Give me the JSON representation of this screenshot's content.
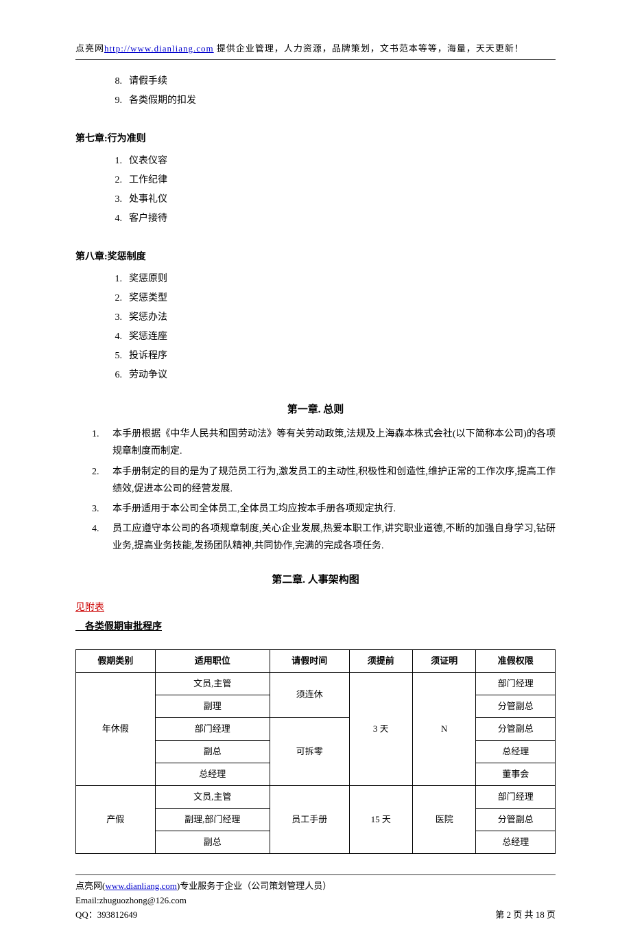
{
  "header": {
    "prefix": "点亮网",
    "url": "http://www.dianliang.com",
    "suffix": " 提供企业管理，人力资源，品牌策划，文书范本等等，海量，天天更新！"
  },
  "toc_cont": [
    {
      "n": "8.",
      "t": "请假手续"
    },
    {
      "n": "9.",
      "t": "各类假期的扣发"
    }
  ],
  "ch7": {
    "title": "第七章:行为准则",
    "items": [
      {
        "n": "1.",
        "t": "仪表仪容"
      },
      {
        "n": "2.",
        "t": "工作纪律"
      },
      {
        "n": "3.",
        "t": "处事礼仪"
      },
      {
        "n": "4.",
        "t": "客户接待"
      }
    ]
  },
  "ch8": {
    "title": "第八章:奖惩制度",
    "items": [
      {
        "n": "1.",
        "t": "奖惩原则"
      },
      {
        "n": "2.",
        "t": "奖惩类型"
      },
      {
        "n": "3.",
        "t": "奖惩办法"
      },
      {
        "n": "4.",
        "t": "奖惩连座"
      },
      {
        "n": "5.",
        "t": "投诉程序"
      },
      {
        "n": "6.",
        "t": "劳动争议"
      }
    ]
  },
  "sec1": {
    "title": "第一章.  总则",
    "items": [
      {
        "n": "1.",
        "t": "本手册根据《中华人民共和国劳动法》等有关劳动政策,法规及上海森本株式会社(以下简称本公司)的各项规章制度而制定."
      },
      {
        "n": "2.",
        "t": "本手册制定的目的是为了规范员工行为,激发员工的主动性,积极性和创造性,维护正常的工作次序,提高工作绩效,促进本公司的经营发展."
      },
      {
        "n": "3.",
        "t": "本手册适用于本公司全体员工,全体员工均应按本手册各项规定执行."
      },
      {
        "n": "4.",
        "t": "员工应遵守本公司的各项规章制度,关心企业发展,热爱本职工作,讲究职业道德,不断的加强自身学习,钻研业务,提高业务技能,发扬团队精神,共同协作,完满的完成各项任务."
      }
    ]
  },
  "sec2": {
    "title": "第二章.  人事架构图",
    "attach": "见附表",
    "subheading": "　各类假期审批程序"
  },
  "table": {
    "headers": [
      "假期类别",
      "适用职位",
      "请假时间",
      "须提前",
      "须证明",
      "准假权限"
    ],
    "group1": {
      "cat": "年休假",
      "advance": "3 天",
      "cert": "N",
      "rows": [
        {
          "pos": "文员,主管",
          "time": "须连休",
          "auth": "部门经理"
        },
        {
          "pos": "副理",
          "time": "",
          "auth": "分管副总"
        },
        {
          "pos": "部门经理",
          "time": "可拆零",
          "auth": "分管副总"
        },
        {
          "pos": "副总",
          "time": "",
          "auth": "总经理"
        },
        {
          "pos": "总经理",
          "time": "",
          "auth": "董事会"
        }
      ]
    },
    "group2": {
      "cat": "产假",
      "time": "员工手册",
      "advance": "15 天",
      "cert": "医院",
      "rows": [
        {
          "pos": "文员,主管",
          "auth": "部门经理"
        },
        {
          "pos": "副理,部门经理",
          "auth": "分管副总"
        },
        {
          "pos": "副总",
          "auth": "总经理"
        }
      ]
    }
  },
  "footer": {
    "l1a": "点亮网(",
    "l1url": "www.dianliang.com",
    "l1b": ")专业服务于企业（公司策划管理人员）",
    "l2": "Email:zhuguozhong@126.com",
    "l3a": "QQ：393812649",
    "l3b": "第 2 页 共 18 页"
  }
}
